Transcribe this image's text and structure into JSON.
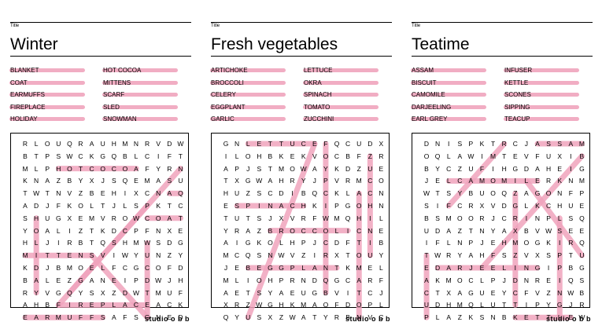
{
  "brand": "studio o b b",
  "panels": [
    {
      "title_label": "Title",
      "title": "Winter",
      "words": [
        "BLANKET",
        "COAT",
        "EARMUFFS",
        "FIREPLACE",
        "HOLIDAY",
        "HOT COCOA",
        "MITTENS",
        "SCARF",
        "SLED",
        "SNOWMAN"
      ],
      "grid": [
        "RLOUQRAUHMNRVDW",
        "BTPSWCKGQBLCIFT",
        "MLPHOTCOCOAFYRN",
        "KNAZBYXJSQEMASU",
        "TWTNVZBEHIXCNAQ",
        "ADJFKOLTJLSPKTC",
        "SHUGXEMVROWCOAT",
        "YOALIZTKDCPFNXE",
        "HLJIRBTQSHMWSDG",
        "MITTENSVIWYUNZY",
        "KDJBMOELFCGCOFD",
        "BALEZGANEIPDWJH",
        "RYVGQYSXZDWTMUF",
        "AHBFIREPLACEACK",
        "EARMUFFSAFSGNED"
      ],
      "highlight_color": "#f0a4bd"
    },
    {
      "title_label": "Title",
      "title": "Fresh vegetables",
      "words": [
        "ARTICHOKE",
        "BROCCOLI",
        "CELERY",
        "EGGPLANT",
        "GARLIC",
        "LETTUCE",
        "OKRA",
        "SPINACH",
        "TOMATO",
        "ZUCCHINI"
      ],
      "grid": [
        "GNLETTUCEFQCUDX",
        "ILOHBKEKVOCBFZR",
        "APJSTMOWAYKDZUE",
        "TXGWAHRYJPVRMCO",
        "HUZSCDIBQCKLACN",
        "ESPINACHKIPGOHN",
        "TUTSJXVRFWMQHIL",
        "YRAZBROCCOLICNE",
        "AIGKOLHPJCDFTIB",
        "MCQSNWVZIRXTOUY",
        "JEBEGGPLANTKMEL",
        "MLIOHPRNDQGCARF",
        "AETSYAEUGBVITCJ",
        "XRZWGHKMAOFDOPL",
        "QYUSXZWATYRBNVC"
      ],
      "highlight_color": "#f0a4bd"
    },
    {
      "title_label": "Title",
      "title": "Teatime",
      "words": [
        "ASSAM",
        "BISCUIT",
        "CAMOMILE",
        "DARJEELING",
        "EARL GREY",
        "INFUSER",
        "KETTLE",
        "SCONES",
        "SIPPING",
        "TEACUP"
      ],
      "grid": [
        "DNISPKTRCJASSAM",
        "OQLAWIMTEVFUXIB",
        "BYCZUFIHGDAHEIG",
        "JELCAMOMILERKNM",
        "WTSYBUOQZAGONFP",
        "SIFCRXVDGLKCHUE",
        "BSMOORJCRINPLSQ",
        "UDAZTNYAXBVWSEE",
        "IFLNPJEHMOGKIRQ",
        "TWRYAHFSZVXSPTU",
        "EDARJEELINGIPBG",
        "AKMOCLPJDNREIQS",
        "CTXAGUEYCFVZNWB",
        "UDHMQLUTTIPYGJR",
        "PLAZKSNBKETTLEW"
      ],
      "highlight_color": "#f0a4bd"
    }
  ]
}
